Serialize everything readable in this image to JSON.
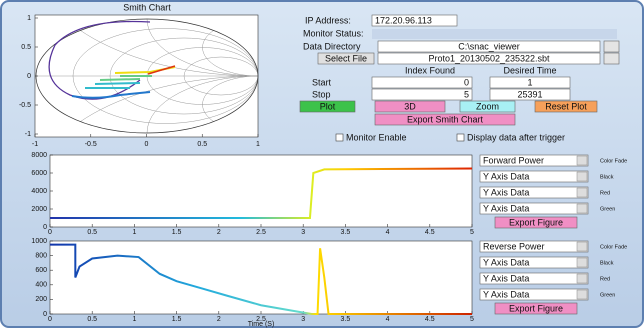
{
  "smith_chart": {
    "title": "Smith Chart",
    "xlim": [
      -1,
      1
    ],
    "ylim": [
      -1,
      1
    ],
    "xticks": [
      -1,
      -0.5,
      0,
      0.5,
      1
    ],
    "yticks": [
      -1,
      -0.5,
      0,
      0.5,
      1
    ]
  },
  "form": {
    "ip_label": "IP Address:",
    "ip_value": "172.20.96.113",
    "monitor_status_label": "Monitor Status:",
    "data_directory_label": "Data Directory",
    "data_directory_value": "C:\\snac_viewer",
    "select_file_label": "Select File",
    "select_file_value": "Proto1_20130502_235322.sbt",
    "index_found": "Index Found",
    "desired_time": "Desired Time",
    "start_label": "Start",
    "start_index": "0",
    "start_time": "1",
    "stop_label": "Stop",
    "stop_index": "5",
    "stop_time": "25391",
    "buttons": [
      "Plot",
      "3D",
      "Zoom",
      "Reset Plot"
    ],
    "export_smith": "Export Smith Chart",
    "checkboxes": [
      "Monitor Enable",
      "Display data after trigger"
    ]
  },
  "plot1": {
    "xlim": [
      0,
      5
    ],
    "ylim": [
      0,
      8000
    ],
    "xticks": [
      0,
      0.5,
      1,
      1.5,
      2,
      2.5,
      3,
      3.5,
      4,
      4.5,
      5
    ],
    "yticks": [
      0,
      2000,
      4000,
      6000,
      8000
    ],
    "x": [
      0,
      3.08,
      3.12,
      3.25,
      5
    ],
    "y": [
      1000,
      1000,
      6000,
      6400,
      6500
    ],
    "dropdowns": [
      "Forward Power",
      "Y Axis Data",
      "Y Axis Data",
      "Y Axis Data"
    ],
    "side_labels": [
      "Color Fade",
      "Black",
      "Red",
      "Green"
    ],
    "export": "Export Figure"
  },
  "plot2": {
    "xlim": [
      0,
      5
    ],
    "ylim": [
      0,
      1000
    ],
    "xticks": [
      0,
      0.5,
      1,
      1.5,
      2,
      2.5,
      3,
      3.5,
      4,
      4.5,
      5
    ],
    "yticks": [
      0,
      200,
      400,
      600,
      800,
      1000
    ],
    "xlabel": "Time (S)",
    "x": [
      0,
      0.3,
      0.3,
      0.35,
      0.5,
      0.8,
      1.05,
      1.3,
      1.5,
      1.8,
      2.1,
      2.5,
      2.9,
      3.1,
      3.17,
      3.2,
      3.25,
      3.3,
      5
    ],
    "y": [
      950,
      950,
      500,
      650,
      760,
      800,
      780,
      550,
      450,
      350,
      250,
      120,
      40,
      0,
      0,
      900,
      500,
      0,
      0
    ],
    "dropdowns": [
      "Reverse Power",
      "Y Axis Data",
      "Y Axis Data",
      "Y Axis Data"
    ],
    "side_labels": [
      "Color Fade",
      "Black",
      "Red",
      "Green"
    ],
    "export": "Export Figure"
  }
}
